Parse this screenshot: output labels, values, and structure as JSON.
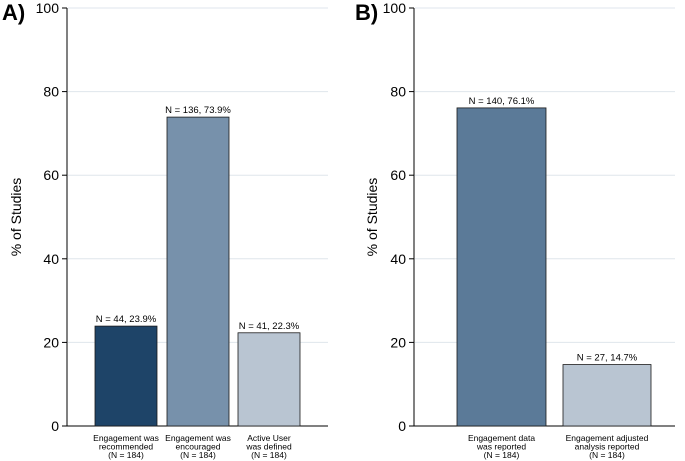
{
  "chart_data": [
    {
      "type": "bar",
      "panel_label": "A)",
      "ylabel": "% of Studies",
      "ylim": [
        0,
        100
      ],
      "yticks": [
        "0",
        "20",
        "40",
        "60",
        "80",
        "100"
      ],
      "grid": true,
      "categories": [
        {
          "lines": [
            "Engagement was",
            "recommended",
            "(N = 184)"
          ]
        },
        {
          "lines": [
            "Engagement was",
            "encouraged",
            "(N = 184)"
          ]
        },
        {
          "lines": [
            "Active User",
            "was defined",
            "(N = 184)"
          ]
        }
      ],
      "values": [
        23.9,
        73.9,
        22.3
      ],
      "data_labels": [
        "N = 44, 23.9%",
        "N = 136, 73.9%",
        "N = 41, 22.3%"
      ],
      "colors": [
        "#1e4468",
        "#7791ab",
        "#b9c5d2"
      ]
    },
    {
      "type": "bar",
      "panel_label": "B)",
      "ylabel": "% of Studies",
      "ylim": [
        0,
        100
      ],
      "yticks": [
        "0",
        "20",
        "40",
        "60",
        "80",
        "100"
      ],
      "grid": true,
      "categories": [
        {
          "lines": [
            "Engagement data",
            "was reported",
            "(N = 184)"
          ]
        },
        {
          "lines": [
            "Engagement adjusted",
            "analysis reported",
            "(N = 184)"
          ]
        }
      ],
      "values": [
        76.1,
        14.7
      ],
      "data_labels": [
        "N = 140, 76.1%",
        "N = 27, 14.7%"
      ],
      "colors": [
        "#5b7a98",
        "#b9c5d2"
      ]
    }
  ]
}
